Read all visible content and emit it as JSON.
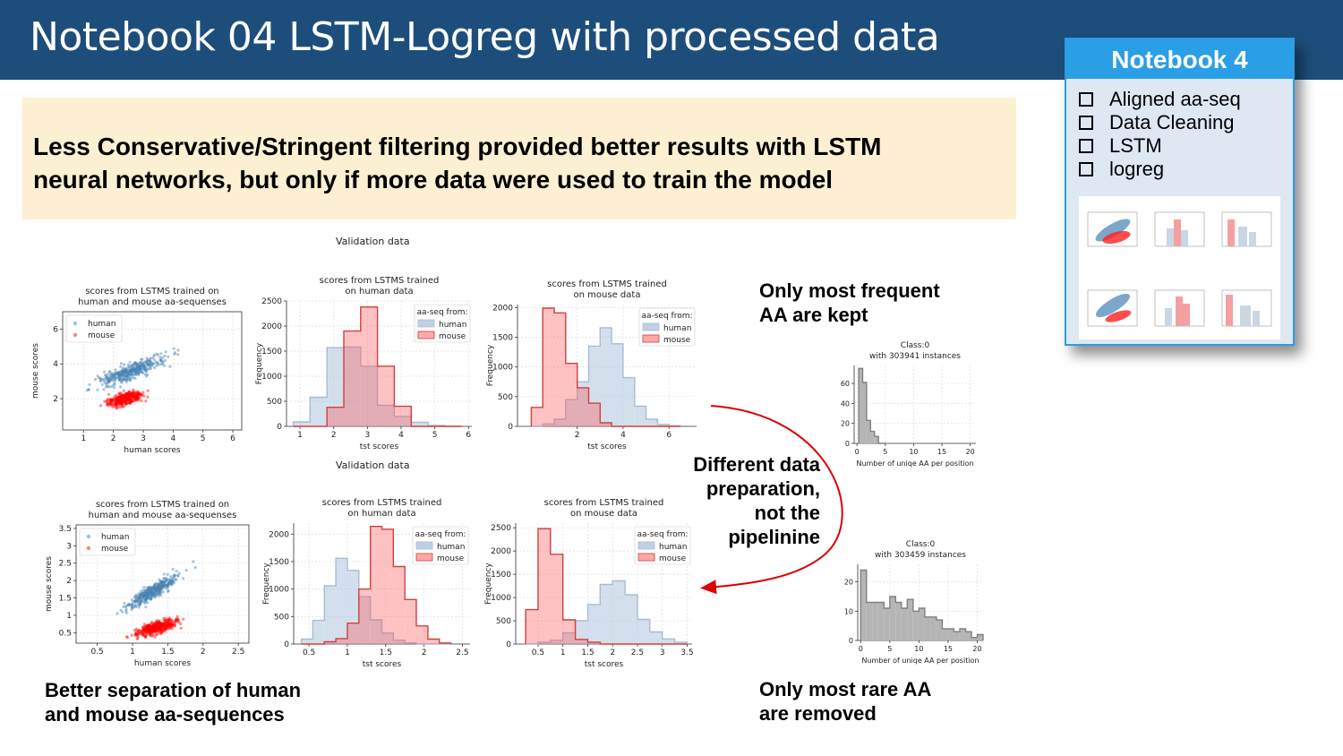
{
  "title": "Notebook 04 LSTM-Logreg with processed data",
  "callout": {
    "line1": "Less Conservative/Stringent filtering provided better results with LSTM",
    "line2": "neural networks, but only if more data were used to train the model"
  },
  "notebook_card": {
    "header": "Notebook 4",
    "items": [
      {
        "label": "Aligned aa-seq"
      },
      {
        "label": "Data Cleaning"
      },
      {
        "label": "LSTM"
      },
      {
        "label": "logreg"
      }
    ]
  },
  "captions": {
    "frequent_line1": "Only most frequent",
    "frequent_line2": "AA are kept",
    "different_line1": "Different data",
    "different_line2": "preparation,",
    "different_line3": "not the",
    "different_line4": "pipelinine",
    "separation_line1": "Better separation of human",
    "separation_line2": "and mouse aa-sequences",
    "rare_line1": "Only most rare AA",
    "rare_line2": "are removed"
  },
  "section_titles": {
    "top": "Validation data",
    "bottom": "Validation data"
  },
  "colors": {
    "banner": "#1d4e7b",
    "callout": "#fdf0d2",
    "card_header": "#2a9fe5",
    "human": "#4682b4",
    "mouse": "#ff0000",
    "arrow": "#dd0000",
    "gray_hist": "#808080"
  },
  "chart_data": [
    {
      "type": "scatter",
      "title": "scores from LSTMS trained on\nhuman and mouse aa-sequenses",
      "xlabel": "human scores",
      "ylabel": "mouse scores",
      "xlim": [
        0.3,
        6.3
      ],
      "ylim": [
        0.2,
        7.0
      ],
      "xticks": [
        1,
        2,
        3,
        4,
        5,
        6
      ],
      "yticks": [
        2,
        4,
        6
      ],
      "grid": true,
      "legend": "top-left",
      "series": [
        {
          "name": "human",
          "center": [
            2.6,
            3.6
          ],
          "slope": 0.65,
          "x_range": [
            0.9,
            5.4
          ]
        },
        {
          "name": "mouse",
          "center": [
            2.4,
            2.0
          ],
          "slope": 0.35,
          "x_range": [
            1.3,
            3.7
          ]
        }
      ]
    },
    {
      "type": "bar",
      "title": "scores from LSTMS trained\non human data",
      "xlabel": "tst scores",
      "ylabel": "Frequency",
      "xlim": [
        0.6,
        6.1
      ],
      "ylim": [
        0,
        2500
      ],
      "xticks": [
        1,
        2,
        3,
        4,
        5,
        6
      ],
      "yticks": [
        0,
        500,
        1000,
        1500,
        2000,
        2500
      ],
      "legend_title": "aa-seq from:",
      "legend": "top-right",
      "bin_edges": [
        0.8,
        1.3,
        1.8,
        2.3,
        2.8,
        3.3,
        3.8,
        4.3,
        4.8,
        5.3,
        5.8
      ],
      "series": [
        {
          "name": "human",
          "values": [
            90,
            580,
            1570,
            1580,
            1200,
            420,
            200,
            80,
            20,
            0
          ]
        },
        {
          "name": "mouse",
          "values": [
            0,
            0,
            380,
            1900,
            2380,
            1200,
            400,
            0,
            0,
            0
          ]
        }
      ]
    },
    {
      "type": "bar",
      "title": "scores from LSTMS trained\non mouse data",
      "xlabel": "tst scores",
      "ylabel": "Frequency",
      "xlim": [
        -0.6,
        7.2
      ],
      "ylim": [
        0,
        2050
      ],
      "xticks": [
        2,
        4,
        6
      ],
      "yticks": [
        0,
        500,
        1000,
        1500,
        2000
      ],
      "legend_title": "aa-seq from:",
      "legend": "top-right",
      "bin_edges": [
        0.0,
        0.5,
        1.0,
        1.5,
        2.0,
        2.5,
        3.0,
        3.5,
        4.0,
        4.5,
        5.0,
        5.5,
        6.0,
        6.5
      ],
      "series": [
        {
          "name": "human",
          "values": [
            0,
            40,
            120,
            450,
            750,
            1350,
            1660,
            1390,
            820,
            340,
            120,
            30,
            10
          ]
        },
        {
          "name": "mouse",
          "values": [
            320,
            1990,
            1910,
            1060,
            650,
            390,
            60,
            0,
            0,
            0,
            0,
            0,
            0
          ]
        }
      ]
    },
    {
      "type": "bar",
      "title": "Class:0\nwith 303941 instances",
      "xlabel": "Number of uniqe AA per position",
      "xlim": [
        -0.5,
        21.0
      ],
      "ylim": [
        0,
        78
      ],
      "xticks": [
        0,
        5,
        10,
        15,
        20
      ],
      "yticks": [
        0,
        20,
        40,
        60
      ],
      "bin_edges": [
        0.3,
        1.0,
        1.7,
        2.4,
        3.1,
        3.8,
        4.5,
        5.2
      ],
      "series": [
        {
          "name": "",
          "values": [
            75,
            61,
            23,
            12,
            7,
            0,
            0
          ]
        }
      ]
    },
    {
      "type": "scatter",
      "title": "scores from LSTMS trained on\nhuman and mouse aa-sequenses",
      "xlabel": "human scores",
      "ylabel": "mouse scores",
      "xlim": [
        0.2,
        2.65
      ],
      "ylim": [
        0.2,
        3.6
      ],
      "xticks": [
        0.5,
        1.0,
        1.5,
        2.0,
        2.5
      ],
      "yticks": [
        0.5,
        1.0,
        1.5,
        2.0,
        2.5,
        3.0,
        3.5
      ],
      "grid": true,
      "legend": "top-left",
      "series": [
        {
          "name": "human",
          "center": [
            1.3,
            1.7
          ],
          "slope": 1.2,
          "x_range": [
            0.6,
            2.1
          ]
        },
        {
          "name": "mouse",
          "center": [
            1.35,
            0.65
          ],
          "slope": 0.55,
          "x_range": [
            0.85,
            2.1
          ]
        }
      ]
    },
    {
      "type": "bar",
      "title": "scores from LSTMS trained\non human data",
      "xlabel": "tst scores",
      "ylabel": "Frequency",
      "xlim": [
        0.3,
        2.6
      ],
      "ylim": [
        0,
        2200
      ],
      "xticks": [
        0.5,
        1.0,
        1.5,
        2.0,
        2.5
      ],
      "yticks": [
        0,
        500,
        1000,
        1500,
        2000
      ],
      "legend_title": "aa-seq from:",
      "legend": "top-right",
      "bin_edges": [
        0.4,
        0.55,
        0.7,
        0.85,
        1.0,
        1.15,
        1.3,
        1.45,
        1.6,
        1.75,
        1.9,
        2.05,
        2.2,
        2.35
      ],
      "series": [
        {
          "name": "human",
          "values": [
            90,
            430,
            1060,
            1560,
            1340,
            860,
            440,
            200,
            70,
            20,
            0,
            0,
            0
          ]
        },
        {
          "name": "mouse",
          "values": [
            0,
            0,
            40,
            100,
            380,
            1000,
            2140,
            2090,
            1410,
            810,
            330,
            90,
            20
          ]
        }
      ]
    },
    {
      "type": "bar",
      "title": "scores from LSTMS trained\non mouse data",
      "xlabel": "tst scores",
      "ylabel": "Frequency",
      "xlim": [
        0.05,
        3.6
      ],
      "ylim": [
        0,
        2600
      ],
      "xticks": [
        0.5,
        1.0,
        1.5,
        2.0,
        2.5,
        3.0,
        3.5
      ],
      "yticks": [
        0,
        500,
        1000,
        1500,
        2000,
        2500
      ],
      "legend_title": "aa-seq from:",
      "legend": "top-right",
      "bin_edges": [
        0.25,
        0.5,
        0.75,
        1.0,
        1.25,
        1.5,
        1.75,
        2.0,
        2.25,
        2.5,
        2.75,
        3.0,
        3.25,
        3.5
      ],
      "series": [
        {
          "name": "human",
          "values": [
            0,
            40,
            80,
            240,
            500,
            850,
            1280,
            1360,
            1060,
            530,
            260,
            110,
            40
          ]
        },
        {
          "name": "mouse",
          "values": [
            740,
            2480,
            1930,
            520,
            100,
            40,
            0,
            0,
            0,
            0,
            0,
            0,
            0
          ]
        }
      ]
    },
    {
      "type": "bar",
      "title": "Class:0\nwith 303459 instances",
      "xlabel": "Number of uniqe AA per position",
      "xlim": [
        -0.5,
        21.0
      ],
      "ylim": [
        0,
        26
      ],
      "xticks": [
        0,
        5,
        10,
        15,
        20
      ],
      "yticks": [
        0,
        10,
        20
      ],
      "bin_edges": [
        0,
        1,
        2,
        3,
        4,
        5,
        6,
        7,
        8,
        9,
        10,
        11,
        12,
        13,
        14,
        15,
        16,
        17,
        18,
        19,
        20,
        21
      ],
      "series": [
        {
          "name": "",
          "values": [
            24,
            13,
            13,
            13,
            11,
            15,
            13,
            11,
            14,
            10,
            11,
            8,
            8,
            7,
            4,
            4,
            3,
            4,
            3,
            1,
            2
          ]
        }
      ]
    }
  ]
}
